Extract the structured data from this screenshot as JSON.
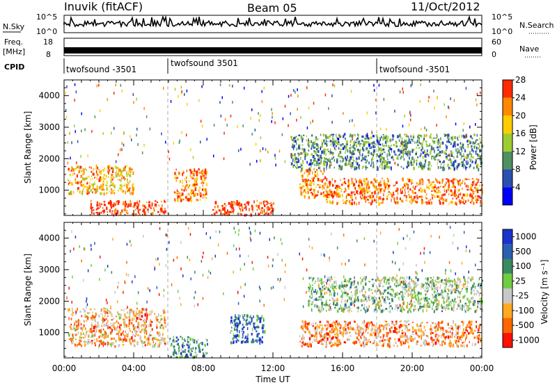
{
  "header": {
    "station": "Inuvik (fitACF)",
    "beam": "Beam 05",
    "date": "11/Oct/2012"
  },
  "sky_panel": {
    "left_label": "N.Sky",
    "left_ticks": [
      "10^5",
      "10^0"
    ],
    "right_label": "N.Search",
    "right_ticks": [
      "10^5",
      "10^0"
    ]
  },
  "freq_panel": {
    "left_label_line1": "Freq.",
    "left_label_line2": "[MHz]",
    "left_ticks": [
      "18",
      "8"
    ],
    "right_label": "Nave",
    "right_ticks": [
      "60",
      "0"
    ]
  },
  "cpid_panel": {
    "label": "CPID",
    "segments": [
      {
        "label": "twofsound -3501"
      },
      {
        "label": "twofsound 3501"
      },
      {
        "label": "twofsound -3501"
      }
    ]
  },
  "chart_data": [
    {
      "type": "heatmap",
      "name": "power",
      "ylabel": "Slant Range [km]",
      "xlabel": "",
      "x_ticks": [
        "00:00",
        "04:00",
        "08:00",
        "12:00",
        "16:00",
        "20:00",
        "00:00"
      ],
      "y_ticks": [
        1000,
        2000,
        3000,
        4000
      ],
      "ylim": [
        200,
        4500
      ],
      "xlim_hours": [
        0,
        24
      ],
      "colorbar": {
        "label": "Power [dB]",
        "ticks": [
          "4",
          "8",
          "12",
          "16",
          "20",
          "24",
          "28"
        ],
        "colors": [
          "#0000ff",
          "#2a50b0",
          "#4f9060",
          "#9ccc30",
          "#ffcc00",
          "#ff8800",
          "#ff2a00"
        ]
      },
      "echo_regions": [
        {
          "t0": 0.2,
          "t1": 4.0,
          "r0": 900,
          "r1": 1800,
          "level": 0.7
        },
        {
          "t0": 1.5,
          "t1": 5.8,
          "r0": 250,
          "r1": 700,
          "level": 0.95
        },
        {
          "t0": 6.3,
          "t1": 8.2,
          "r0": 700,
          "r1": 1700,
          "level": 0.8
        },
        {
          "t0": 8.5,
          "t1": 12.0,
          "r0": 250,
          "r1": 700,
          "level": 0.95
        },
        {
          "t0": 13.5,
          "t1": 15.0,
          "r0": 800,
          "r1": 1700,
          "level": 0.8
        },
        {
          "t0": 15.0,
          "t1": 24.0,
          "r0": 600,
          "r1": 1400,
          "level": 0.85
        },
        {
          "t0": 13.0,
          "t1": 24.0,
          "r0": 1700,
          "r1": 2800,
          "level": 0.35
        }
      ]
    },
    {
      "type": "heatmap",
      "name": "velocity",
      "ylabel": "Slant Range [km]",
      "xlabel": "Time UT",
      "x_ticks": [
        "00:00",
        "04:00",
        "08:00",
        "12:00",
        "16:00",
        "20:00",
        "00:00"
      ],
      "y_ticks": [
        1000,
        2000,
        3000,
        4000
      ],
      "ylim": [
        200,
        4500
      ],
      "xlim_hours": [
        0,
        24
      ],
      "colorbar": {
        "label": "Velocity [m s⁻¹]",
        "ticks": [
          "1000",
          "500",
          "100",
          "25",
          "-25",
          "-100",
          "-500",
          "-1000"
        ],
        "colors": [
          "#1a33cc",
          "#2a60b0",
          "#3a8a60",
          "#70cc40",
          "#c8c8c8",
          "#ffaa20",
          "#ff6600",
          "#ff1100"
        ]
      },
      "echo_regions": [
        {
          "t0": 0.2,
          "t1": 5.8,
          "r0": 600,
          "r1": 1800,
          "level": 0.7
        },
        {
          "t0": 6.0,
          "t1": 8.2,
          "r0": 250,
          "r1": 900,
          "level": 0.3
        },
        {
          "t0": 9.5,
          "t1": 11.5,
          "r0": 700,
          "r1": 1600,
          "level": 0.2
        },
        {
          "t0": 13.5,
          "t1": 24.0,
          "r0": 600,
          "r1": 1400,
          "level": 0.75
        },
        {
          "t0": 14.0,
          "t1": 24.0,
          "r0": 1700,
          "r1": 2800,
          "level": 0.45
        }
      ]
    }
  ]
}
